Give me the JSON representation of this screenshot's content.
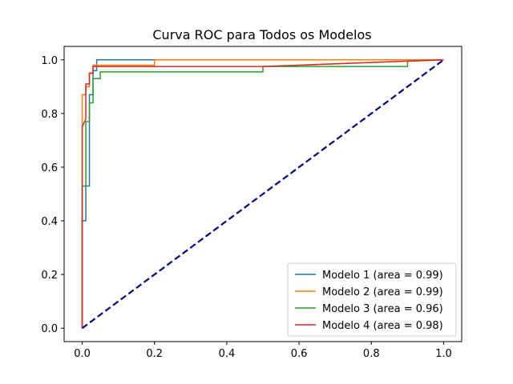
{
  "chart_data": {
    "type": "line",
    "title": "Curva ROC para Todos os Modelos",
    "xlabel": "",
    "ylabel": "",
    "xlim": [
      -0.05,
      1.05
    ],
    "ylim": [
      -0.05,
      1.05
    ],
    "xticks": [
      0.0,
      0.2,
      0.4,
      0.6,
      0.8,
      1.0
    ],
    "yticks": [
      0.0,
      0.2,
      0.4,
      0.6,
      0.8,
      1.0
    ],
    "xtick_labels": [
      "0.0",
      "0.2",
      "0.4",
      "0.6",
      "0.8",
      "1.0"
    ],
    "ytick_labels": [
      "0.0",
      "0.2",
      "0.4",
      "0.6",
      "0.8",
      "1.0"
    ],
    "grid": false,
    "legend_position": "lower-right",
    "series": [
      {
        "name": "Modelo 1 (area = 0.99)",
        "color": "#1f77b4",
        "x": [
          0.0,
          0.0,
          0.01,
          0.01,
          0.02,
          0.02,
          0.03,
          0.03,
          0.04,
          0.04,
          1.0
        ],
        "y": [
          0.0,
          0.4,
          0.4,
          0.53,
          0.53,
          0.87,
          0.87,
          0.96,
          0.96,
          1.0,
          1.0
        ]
      },
      {
        "name": "Modelo 2 (area = 0.99)",
        "color": "#ff7f0e",
        "x": [
          0.0,
          0.0,
          0.01,
          0.01,
          0.02,
          0.02,
          0.03,
          0.03,
          0.2,
          0.2,
          1.0
        ],
        "y": [
          0.0,
          0.87,
          0.87,
          0.9,
          0.9,
          0.95,
          0.95,
          0.98,
          0.98,
          1.0,
          1.0
        ]
      },
      {
        "name": "Modelo 3 (area = 0.96)",
        "color": "#2ca02c",
        "x": [
          0.0,
          0.0,
          0.01,
          0.01,
          0.02,
          0.02,
          0.03,
          0.03,
          0.05,
          0.05,
          0.5,
          0.5,
          0.9,
          0.9,
          1.0
        ],
        "y": [
          0.0,
          0.53,
          0.53,
          0.77,
          0.77,
          0.84,
          0.84,
          0.93,
          0.93,
          0.955,
          0.955,
          0.975,
          0.975,
          0.995,
          1.0
        ]
      },
      {
        "name": "Modelo 4 (area = 0.98)",
        "color": "#d62728",
        "x": [
          0.0,
          0.0,
          0.01,
          0.01,
          0.02,
          0.02,
          0.03,
          0.03,
          0.5,
          1.0
        ],
        "y": [
          0.0,
          0.75,
          0.78,
          0.91,
          0.91,
          0.95,
          0.95,
          0.975,
          0.975,
          1.0
        ]
      }
    ],
    "reference_line": {
      "color": "#000080",
      "style": "dashed",
      "x": [
        0.0,
        1.0
      ],
      "y": [
        0.0,
        1.0
      ]
    }
  }
}
